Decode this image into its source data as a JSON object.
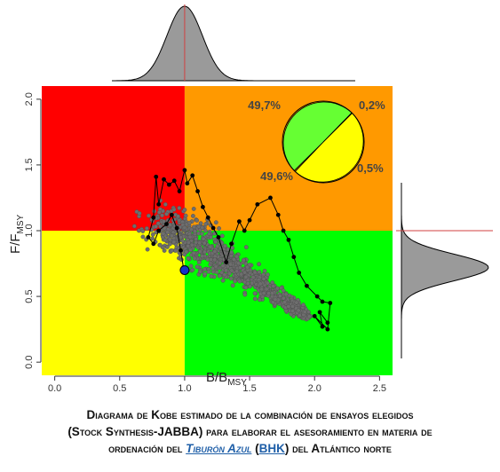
{
  "chart_data": {
    "type": "scatter",
    "xlabel": "B/B",
    "xlabel_sub": "MSY",
    "ylabel": "F/F",
    "ylabel_sub": "MSY",
    "xlim": [
      -0.1,
      2.6
    ],
    "ylim": [
      -0.1,
      2.1
    ],
    "x_ticks": [
      0.0,
      0.5,
      1.0,
      1.5,
      2.0,
      2.5
    ],
    "x_tick_labels": [
      "0.0",
      "0.5",
      "1.0",
      "1.5",
      "2.0",
      "2.5"
    ],
    "y_ticks": [
      0.0,
      0.5,
      1.0,
      1.5,
      2.0
    ],
    "y_tick_labels": [
      "0.0",
      "0.5",
      "1.0",
      "1.5",
      "2.0"
    ],
    "reference_lines": {
      "x": 1.0,
      "y": 1.0
    },
    "quadrant_colors": {
      "top_left": "#ff0000",
      "top_right": "#ff9900",
      "bottom_left": "#ffff00",
      "bottom_right": "#00ff00"
    },
    "cloud_color": "#6e6e6e",
    "trajectory": [
      [
        2.1,
        0.3
      ],
      [
        2.04,
        0.38
      ],
      [
        2.06,
        0.27
      ],
      [
        2.0,
        0.35
      ],
      [
        2.1,
        0.25
      ],
      [
        2.12,
        0.45
      ],
      [
        2.06,
        0.46
      ],
      [
        2.02,
        0.5
      ],
      [
        1.94,
        0.58
      ],
      [
        1.88,
        0.68
      ],
      [
        1.84,
        0.8
      ],
      [
        1.8,
        0.93
      ],
      [
        1.76,
        1.0
      ],
      [
        1.72,
        1.12
      ],
      [
        1.66,
        1.25
      ],
      [
        1.56,
        1.2
      ],
      [
        1.5,
        1.08
      ],
      [
        1.46,
        1.0
      ],
      [
        1.42,
        1.07
      ],
      [
        1.36,
        0.9
      ],
      [
        1.32,
        0.76
      ],
      [
        1.26,
        0.95
      ],
      [
        1.22,
        1.02
      ],
      [
        1.18,
        1.1
      ],
      [
        1.14,
        1.18
      ],
      [
        1.1,
        1.3
      ],
      [
        1.06,
        1.42
      ],
      [
        1.02,
        1.36
      ],
      [
        1.0,
        1.46
      ],
      [
        0.96,
        1.3
      ],
      [
        0.92,
        1.38
      ],
      [
        0.88,
        1.35
      ],
      [
        0.84,
        1.39
      ],
      [
        0.8,
        1.2
      ],
      [
        0.78,
        1.41
      ],
      [
        0.76,
        1.1
      ],
      [
        0.72,
        0.95
      ],
      [
        0.76,
        0.9
      ],
      [
        0.8,
        1.0
      ],
      [
        0.86,
        1.05
      ],
      [
        0.9,
        1.12
      ],
      [
        0.94,
        1.02
      ],
      [
        0.97,
        0.85
      ],
      [
        0.99,
        0.72
      ]
    ],
    "final_point": [
      1.0,
      0.7
    ],
    "final_point_color": "#1530c8",
    "pie": {
      "slices": [
        {
          "label": "49,7%",
          "value": 49.7,
          "color": "#66ff33"
        },
        {
          "label": "0,2%",
          "value": 0.2,
          "color": "#ff0000"
        },
        {
          "label": "49,6%",
          "value": 49.6,
          "color": "#ffff00"
        },
        {
          "label": "0,5%",
          "value": 0.5,
          "color": "#ff9900"
        }
      ]
    },
    "marginal_color": "#9a9a9a",
    "marginal_line_color": "#d04040"
  },
  "caption": {
    "line1": "Diagrama de Kobe estimado de la combinación de ensayos elegidos",
    "line2": "(Stock Synthesis-JABBA) para elaborar el asesoramiento en materia de",
    "line3_a": "ordenación del ",
    "line3_link1": "Tiburón Azul",
    "line3_b": " (",
    "line3_link2": "BHK",
    "line3_c": ") del Atlántico norte"
  }
}
